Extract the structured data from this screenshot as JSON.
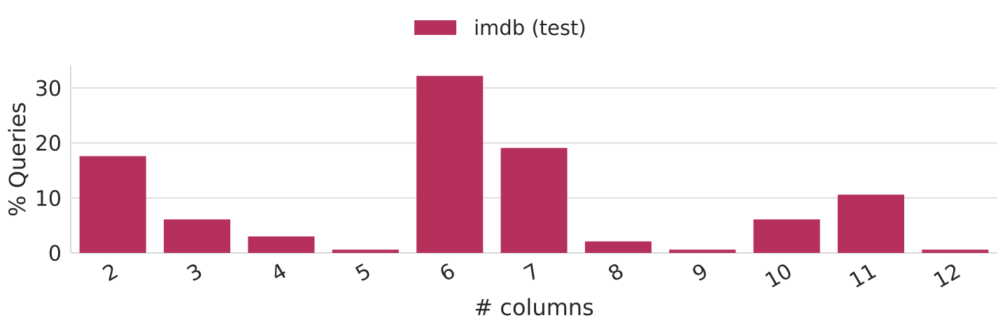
{
  "chart_data": {
    "type": "bar",
    "title": "",
    "xlabel": "# columns",
    "ylabel": "% Queries",
    "categories": [
      "2",
      "3",
      "4",
      "5",
      "6",
      "7",
      "8",
      "9",
      "10",
      "11",
      "12"
    ],
    "series": [
      {
        "name": "imdb (test)",
        "color": "#b5305a",
        "values": [
          17.6,
          6.1,
          3.0,
          0.6,
          32.2,
          19.1,
          2.1,
          0.6,
          6.1,
          10.6,
          0.6
        ]
      }
    ],
    "yticks": [
      0,
      10,
      20,
      30
    ],
    "ylim": [
      0,
      34
    ],
    "grid": "horizontal",
    "legend_position": "top-center"
  }
}
